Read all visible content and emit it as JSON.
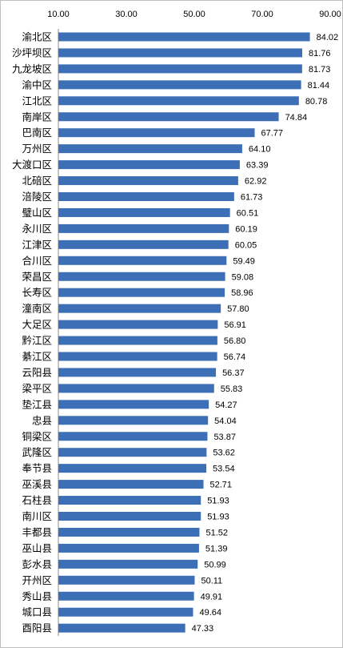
{
  "chart_data": {
    "type": "bar",
    "orientation": "horizontal",
    "title": "",
    "xlabel": "",
    "ylabel": "",
    "xlim": [
      10,
      90
    ],
    "x_ticks": [
      "10.00",
      "30.00",
      "50.00",
      "70.00",
      "90.00"
    ],
    "x_axis_position": "top",
    "grid": false,
    "legend": "none",
    "bar_color": "#3d6fb6",
    "categories": [
      "渝北区",
      "沙坪坝区",
      "九龙坡区",
      "渝中区",
      "江北区",
      "南岸区",
      "巴南区",
      "万州区",
      "大渡口区",
      "北碚区",
      "涪陵区",
      "璧山区",
      "永川区",
      "江津区",
      "合川区",
      "荣昌区",
      "长寿区",
      "潼南区",
      "大足区",
      "黔江区",
      "綦江区",
      "云阳县",
      "梁平区",
      "垫江县",
      "忠县",
      "铜梁区",
      "武隆区",
      "奉节县",
      "巫溪县",
      "石柱县",
      "南川区",
      "丰都县",
      "巫山县",
      "彭水县",
      "开州区",
      "秀山县",
      "城口县",
      "酉阳县"
    ],
    "values": [
      84.02,
      81.76,
      81.73,
      81.44,
      80.78,
      74.84,
      67.77,
      64.1,
      63.39,
      62.92,
      61.73,
      60.51,
      60.19,
      60.05,
      59.49,
      59.08,
      58.96,
      57.8,
      56.91,
      56.8,
      56.74,
      56.37,
      55.83,
      54.27,
      54.04,
      53.87,
      53.62,
      53.54,
      52.71,
      51.93,
      51.93,
      51.52,
      51.39,
      50.99,
      50.11,
      49.91,
      49.64,
      47.33
    ],
    "value_labels": [
      "84.02",
      "81.76",
      "81.73",
      "81.44",
      "80.78",
      "74.84",
      "67.77",
      "64.10",
      "63.39",
      "62.92",
      "61.73",
      "60.51",
      "60.19",
      "60.05",
      "59.49",
      "59.08",
      "58.96",
      "57.80",
      "56.91",
      "56.80",
      "56.74",
      "56.37",
      "55.83",
      "54.27",
      "54.04",
      "53.87",
      "53.62",
      "53.54",
      "52.71",
      "51.93",
      "51.93",
      "51.52",
      "51.39",
      "50.99",
      "50.11",
      "49.91",
      "49.64",
      "47.33"
    ]
  }
}
